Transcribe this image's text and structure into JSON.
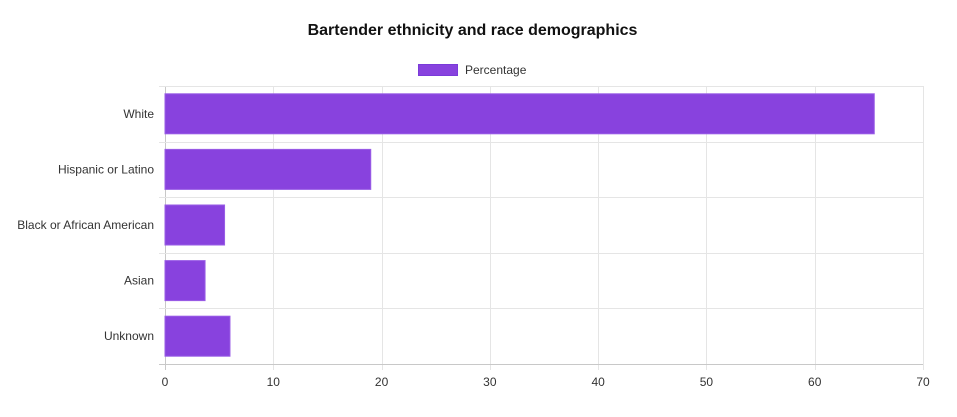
{
  "chart_data": {
    "type": "bar",
    "orientation": "horizontal",
    "title": "Bartender ethnicity and race demographics",
    "categories": [
      "White",
      "Hispanic or Latino",
      "Black or African American",
      "Asian",
      "Unknown"
    ],
    "series": [
      {
        "name": "Percentage",
        "values": [
          65.5,
          19.0,
          5.5,
          3.7,
          6.0
        ],
        "color": "#8842de"
      }
    ],
    "xlim": [
      0,
      70
    ],
    "x_ticks": [
      0,
      10,
      20,
      30,
      40,
      50,
      60,
      70
    ],
    "legend_position": "top-center",
    "grid": true
  }
}
